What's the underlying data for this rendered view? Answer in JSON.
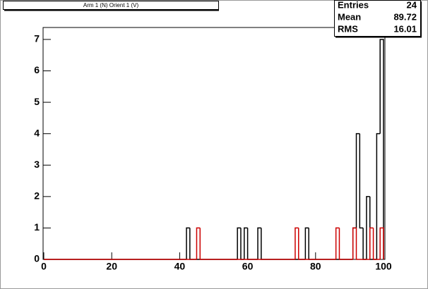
{
  "chart_data": {
    "type": "histogram",
    "title": "Arm 1 (N) Orient 1 (V)",
    "xlim": [
      0,
      100
    ],
    "ylim": [
      0,
      7.38
    ],
    "xticks": [
      0,
      20,
      40,
      60,
      80,
      100
    ],
    "yticks": [
      0,
      1,
      2,
      3,
      4,
      5,
      6,
      7
    ],
    "series": [
      {
        "color": "#000000",
        "bins": [
          0,
          42,
          43,
          57,
          58,
          59,
          60,
          63,
          64,
          77,
          78,
          91,
          92,
          93,
          94,
          95,
          96,
          98,
          99,
          100
        ],
        "values": [
          0,
          1,
          0,
          1,
          0,
          1,
          0,
          1,
          0,
          1,
          0,
          1,
          4,
          1,
          0,
          2,
          0,
          4,
          7
        ]
      },
      {
        "color": "#cc0000",
        "bins": [
          0,
          45,
          46,
          74,
          75,
          86,
          87,
          91,
          92,
          96,
          97,
          99,
          100
        ],
        "values": [
          0,
          1,
          0,
          1,
          0,
          1,
          0,
          1,
          0,
          1,
          0,
          1
        ]
      }
    ],
    "stats": {
      "labels": [
        "Entries",
        "Mean",
        "RMS"
      ],
      "values": [
        24,
        89.72,
        16.01
      ]
    }
  }
}
